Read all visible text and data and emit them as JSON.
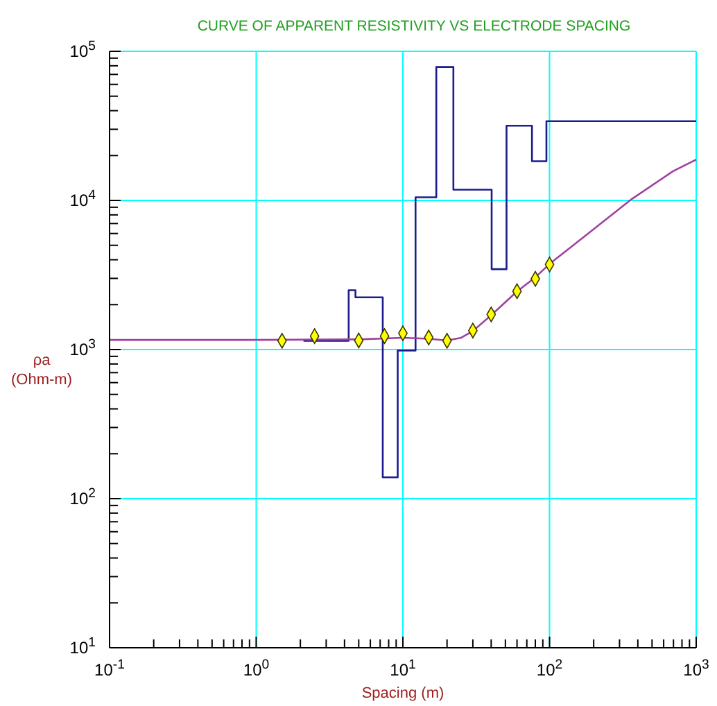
{
  "chart_data": {
    "type": "line",
    "title": "CURVE OF APPARENT RESISTIVITY VS ELECTRODE SPACING",
    "xlabel": "Spacing (m)",
    "ylabel": "ρa (Ohm-m)",
    "log": "xy",
    "grid": true,
    "xlim": [
      0.1,
      1000
    ],
    "ylim": [
      10,
      100000
    ],
    "xticks": [
      {
        "value": 0.1,
        "label": "10$^{-1}$"
      },
      {
        "value": 0.2,
        "label": null
      },
      {
        "value": 0.3,
        "label": null
      },
      {
        "value": 0.4,
        "label": null
      },
      {
        "value": 0.5,
        "label": null
      },
      {
        "value": 0.6,
        "label": null
      },
      {
        "value": 0.7,
        "label": null
      },
      {
        "value": 0.8,
        "label": null
      },
      {
        "value": 0.9,
        "label": null
      },
      {
        "value": 1,
        "label": "10$^{0}$"
      },
      {
        "value": 2,
        "label": null
      },
      {
        "value": 3,
        "label": null
      },
      {
        "value": 4,
        "label": null
      },
      {
        "value": 5,
        "label": null
      },
      {
        "value": 6,
        "label": null
      },
      {
        "value": 7,
        "label": null
      },
      {
        "value": 8,
        "label": null
      },
      {
        "value": 9,
        "label": null
      },
      {
        "value": 10,
        "label": "10$^{1}$"
      },
      {
        "value": 20,
        "label": null
      },
      {
        "value": 30,
        "label": null
      },
      {
        "value": 40,
        "label": null
      },
      {
        "value": 50,
        "label": null
      },
      {
        "value": 60,
        "label": null
      },
      {
        "value": 70,
        "label": null
      },
      {
        "value": 80,
        "label": null
      },
      {
        "value": 90,
        "label": null
      },
      {
        "value": 100,
        "label": "10$^{2}$"
      },
      {
        "value": 200,
        "label": null
      },
      {
        "value": 300,
        "label": null
      },
      {
        "value": 400,
        "label": null
      },
      {
        "value": 500,
        "label": null
      },
      {
        "value": 600,
        "label": null
      },
      {
        "value": 700,
        "label": null
      },
      {
        "value": 800,
        "label": null
      },
      {
        "value": 900,
        "label": null
      },
      {
        "value": 1000,
        "label": "10$^{3}$"
      }
    ],
    "yticks": [
      {
        "value": 10,
        "label": "10$^{1}$"
      },
      {
        "value": 20,
        "label": null
      },
      {
        "value": 30,
        "label": null
      },
      {
        "value": 40,
        "label": null
      },
      {
        "value": 50,
        "label": null
      },
      {
        "value": 60,
        "label": null
      },
      {
        "value": 70,
        "label": null
      },
      {
        "value": 80,
        "label": null
      },
      {
        "value": 90,
        "label": null
      },
      {
        "value": 100,
        "label": "10$^{2}$"
      },
      {
        "value": 200,
        "label": null
      },
      {
        "value": 300,
        "label": null
      },
      {
        "value": 400,
        "label": null
      },
      {
        "value": 500,
        "label": null
      },
      {
        "value": 600,
        "label": null
      },
      {
        "value": 700,
        "label": null
      },
      {
        "value": 800,
        "label": null
      },
      {
        "value": 900,
        "label": null
      },
      {
        "value": 1000,
        "label": "10$^{3}$"
      },
      {
        "value": 2000,
        "label": null
      },
      {
        "value": 3000,
        "label": null
      },
      {
        "value": 4000,
        "label": null
      },
      {
        "value": 5000,
        "label": null
      },
      {
        "value": 6000,
        "label": null
      },
      {
        "value": 7000,
        "label": null
      },
      {
        "value": 8000,
        "label": null
      },
      {
        "value": 9000,
        "label": null
      },
      {
        "value": 10000,
        "label": "10$^{4}$"
      },
      {
        "value": 20000,
        "label": null
      },
      {
        "value": 30000,
        "label": null
      },
      {
        "value": 40000,
        "label": null
      },
      {
        "value": 50000,
        "label": null
      },
      {
        "value": 60000,
        "label": null
      },
      {
        "value": 70000,
        "label": null
      },
      {
        "value": 80000,
        "label": null
      },
      {
        "value": 90000,
        "label": null
      },
      {
        "value": 100000,
        "label": "10$^{5}$"
      }
    ],
    "series": [
      {
        "type": "step",
        "color": "#1c1c8c",
        "marker": "none",
        "x": [
          2.1,
          4.27,
          4.75,
          7.29,
          9.22,
          12.2,
          16.9,
          22.1,
          40.3,
          50.9,
          75.9,
          95.2,
          1000
        ],
        "values": [
          1145,
          2500,
          2240,
          139,
          985,
          10500,
          78500,
          11800,
          3460,
          31700,
          18300,
          34000,
          34000
        ]
      },
      {
        "color": "#a040a0",
        "marker": "none",
        "x": [
          0.1,
          1,
          5,
          10,
          15,
          20,
          25,
          30,
          40,
          60,
          80,
          100,
          167,
          366,
          695,
          1000
        ],
        "values": [
          1160,
          1160,
          1170,
          1200,
          1180,
          1150,
          1200,
          1330,
          1700,
          2450,
          3050,
          3750,
          5580,
          10260,
          15700,
          18800
        ]
      },
      {
        "type": "scatter",
        "color": "#ffff00",
        "marker": "diamond",
        "x": [
          1.5,
          2.5,
          5,
          7.5,
          10,
          15,
          20,
          30,
          40,
          60,
          80,
          100
        ],
        "values": [
          1145,
          1230,
          1150,
          1230,
          1285,
          1205,
          1145,
          1340,
          1720,
          2460,
          2980,
          3720
        ]
      }
    ]
  }
}
